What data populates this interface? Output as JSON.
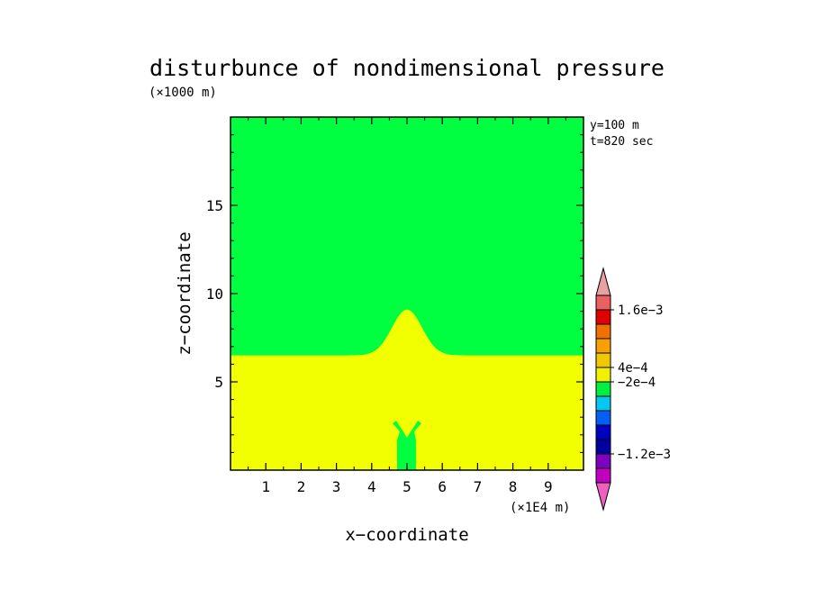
{
  "chart_data": {
    "type": "heatmap",
    "title": "disturbunce of nondimensional pressure",
    "y_unit": "(×1000 m)",
    "x_unit": "(×1E4 m)",
    "xlabel": "x−coordinate",
    "ylabel": "z−coordinate",
    "annotations": [
      "y=100 m",
      "t=820 sec"
    ],
    "xlim": [
      0,
      10
    ],
    "ylim": [
      0,
      20
    ],
    "x_ticks": [
      1,
      2,
      3,
      4,
      5,
      6,
      7,
      8,
      9
    ],
    "x_tick_labels": [
      "1",
      "2",
      "3",
      "4",
      "5",
      "6",
      "7",
      "8",
      "9"
    ],
    "y_ticks": [
      5,
      10,
      15
    ],
    "y_tick_labels": [
      "5",
      "10",
      "15"
    ],
    "fields": {
      "upper_value_band": "-2e-4 to 4e-4",
      "lower_value_band": "4e-4 to 8e-4",
      "interface_base_height": 6.5,
      "hump_center_x": 5.0,
      "hump_peak_height": 9.1,
      "hump_half_width": 0.6,
      "plume_center_x": 5.0,
      "plume_top_height": 2.7
    },
    "colorbar": {
      "colors": [
        "#e8a0a0",
        "#e86060",
        "#e00000",
        "#f07000",
        "#f8a000",
        "#f0c800",
        "#f0f000",
        "#00f040",
        "#00c8f0",
        "#0060f8",
        "#0000c0",
        "#0000a0",
        "#8000c0",
        "#c000c0",
        "#f060c0"
      ],
      "labeled_levels": [
        {
          "level": 0.0016,
          "label": "1.6e−3"
        },
        {
          "level": 0.0004,
          "label": "4e−4"
        },
        {
          "level": -0.0002,
          "label": "−2e−4"
        },
        {
          "level": -0.0012,
          "label": "−1.2e−3"
        }
      ],
      "boundaries": [
        -0.0018,
        -0.0016,
        -0.0014,
        -0.0012,
        -0.001,
        -0.0008,
        -0.0006,
        -0.0004,
        -0.0002,
        0.0004,
        0.0008,
        0.0012,
        0.0014,
        0.0016,
        0.0018
      ]
    },
    "palette": {
      "green": "#00ff40",
      "yellow": "#f2ff00"
    }
  }
}
